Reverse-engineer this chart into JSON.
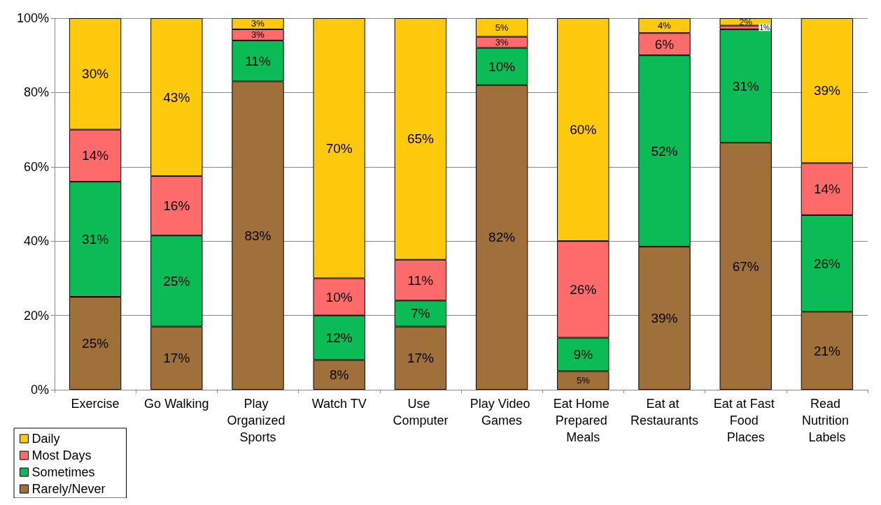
{
  "chart_data": {
    "type": "bar",
    "stacked": true,
    "categories": [
      "Exercise",
      "Go Walking",
      "Play Organized Sports",
      "Watch TV",
      "Use Computer",
      "Play Video Games",
      "Eat Home Prepared Meals",
      "Eat at Restaurants",
      "Eat at Fast Food Places",
      "Read Nutrition Labels"
    ],
    "series": [
      {
        "name": "Rarely/Never",
        "color": "#a0703a",
        "values": [
          25,
          17,
          83,
          8,
          17,
          82,
          5,
          38.5,
          66.5,
          21
        ],
        "value_labels": [
          "25%",
          "17%",
          "83%",
          "8%",
          "17%",
          "82%",
          "5%",
          "39%",
          "67%",
          "21%"
        ]
      },
      {
        "name": "Sometimes",
        "color": "#0bbb55",
        "values": [
          31,
          24.5,
          11,
          12,
          7,
          10,
          9,
          51.5,
          30.5,
          26
        ],
        "value_labels": [
          "31%",
          "25%",
          "11%",
          "12%",
          "7%",
          "10%",
          "9%",
          "52%",
          "31%",
          "26%"
        ]
      },
      {
        "name": "Most Days",
        "color": "#ff6b6b",
        "values": [
          14,
          16,
          3,
          10,
          11,
          3,
          26,
          6,
          1,
          14
        ],
        "value_labels": [
          "14%",
          "16%",
          "3%",
          "10%",
          "11%",
          "3%",
          "26%",
          "6%",
          "1%",
          "14%"
        ]
      },
      {
        "name": "Daily",
        "color": "#ffc90e",
        "values": [
          30,
          42.5,
          3,
          70,
          65,
          5,
          60,
          4,
          2,
          39
        ],
        "value_labels": [
          "30%",
          "43%",
          "3%",
          "70%",
          "65%",
          "5%",
          "60%",
          "4%",
          "2%",
          "39%"
        ]
      }
    ],
    "ylim": [
      0,
      100
    ],
    "yticks": [
      {
        "value": 0,
        "label": "0%"
      },
      {
        "value": 20,
        "label": "20%"
      },
      {
        "value": 40,
        "label": "40%"
      },
      {
        "value": 60,
        "label": "60%"
      },
      {
        "value": 80,
        "label": "80%"
      },
      {
        "value": 100,
        "label": "100%"
      }
    ],
    "grid": "y",
    "legend": "bottom left"
  }
}
